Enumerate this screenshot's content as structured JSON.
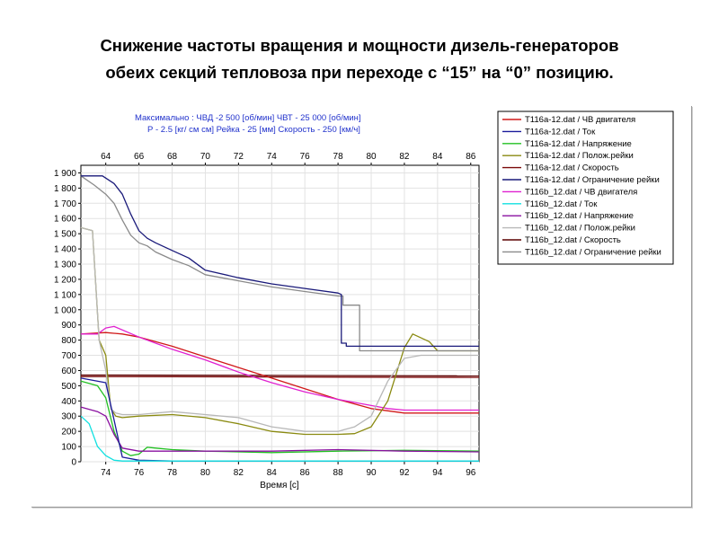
{
  "title": {
    "line1": "Снижение частоты вращения и мощности дизель-генераторов",
    "line2": "обеих секций тепловоза при  переходе с “15” на “0” позицию."
  },
  "chart_header": {
    "line1": "Максимально :   ЧВД -2 500  [об/мин]    ЧВТ - 25 000 [об/мин]",
    "line2": "Р - 2.5 [кг/ см см]   Рейка - 25 [мм]  Скорость - 250 [км/ч]"
  },
  "chart_data": {
    "type": "line",
    "xlabel": "Время [с]",
    "ylabel": "",
    "xlim": [
      72.5,
      96.5
    ],
    "ylim": [
      0,
      1950
    ],
    "grid": true,
    "legend_position": "right",
    "x_ticks_bottom": [
      "74",
      "76",
      "78",
      "80",
      "82",
      "84",
      "86",
      "88",
      "90",
      "92",
      "94",
      "96"
    ],
    "x_ticks_top": [
      "64",
      "66",
      "68",
      "70",
      "72",
      "74",
      "76",
      "78",
      "80",
      "82",
      "84",
      "86"
    ],
    "y_ticks": [
      "0",
      "100",
      "200",
      "300",
      "400",
      "500",
      "600",
      "700",
      "800",
      "900",
      "1 000",
      "1 100",
      "1 200",
      "1 300",
      "1 400",
      "1 500",
      "1 600",
      "1 700",
      "1 800",
      "1 900"
    ],
    "series": [
      {
        "name": "T116a-12.dat / ЧВ двигателя",
        "color": "#d01818",
        "x": [
          72.5,
          74,
          75,
          76,
          78,
          80,
          82,
          84,
          86,
          88,
          90,
          92,
          94,
          96.5
        ],
        "y": [
          840,
          850,
          840,
          820,
          760,
          690,
          620,
          550,
          480,
          410,
          350,
          320,
          320,
          320
        ]
      },
      {
        "name": "T116a-12.dat / Ток",
        "color": "#1a1a9a",
        "x": [
          72.5,
          74,
          75,
          76,
          78,
          80,
          82,
          84,
          86,
          88,
          89,
          90,
          92,
          94,
          96.5
        ],
        "y": [
          550,
          520,
          30,
          10,
          5,
          5,
          5,
          5,
          5,
          5,
          5,
          5,
          5,
          5,
          5
        ]
      },
      {
        "name": "T116a-12.dat / Напряжение",
        "color": "#22c022",
        "x": [
          72.5,
          73.5,
          74,
          74.5,
          75,
          75.5,
          76,
          76.5,
          77,
          78,
          80,
          84,
          88,
          92,
          96.5
        ],
        "y": [
          530,
          500,
          420,
          200,
          70,
          40,
          50,
          95,
          90,
          80,
          70,
          60,
          70,
          75,
          70
        ]
      },
      {
        "name": "T116a-12.dat / Полож.рейки",
        "color": "#8a8a10",
        "x": [
          72.5,
          73.2,
          73.6,
          74,
          74.3,
          74.6,
          75,
          76,
          78,
          80,
          82,
          84,
          86,
          88,
          89,
          90,
          91,
          92,
          92.5,
          93.5,
          94,
          96.5
        ],
        "y": [
          1540,
          1520,
          800,
          700,
          350,
          300,
          290,
          300,
          310,
          290,
          250,
          200,
          180,
          180,
          185,
          230,
          400,
          750,
          840,
          790,
          730,
          730
        ]
      },
      {
        "name": "T116a-12.dat / Скорость",
        "color": "#7a0a0a",
        "x": [
          72.5,
          96.5
        ],
        "y": [
          560,
          555
        ]
      },
      {
        "name": "T116a-12.dat / Ограничение рейки",
        "color": "#1a1a7a",
        "x": [
          72.5,
          73.8,
          74.5,
          75,
          75.5,
          76,
          76.5,
          77,
          78,
          79,
          80,
          82,
          84,
          86,
          88,
          88.2,
          88.2,
          88.5,
          88.5,
          96.5
        ],
        "y": [
          1880,
          1880,
          1830,
          1760,
          1630,
          1520,
          1470,
          1440,
          1390,
          1340,
          1260,
          1210,
          1170,
          1140,
          1110,
          1100,
          780,
          780,
          760,
          760
        ]
      },
      {
        "name": "T116b_12.dat / ЧВ двигателя",
        "color": "#e020d0",
        "x": [
          72.5,
          73.5,
          74,
          74.5,
          76,
          78,
          80,
          82,
          84,
          86,
          88,
          90,
          91,
          92,
          94,
          96.5
        ],
        "y": [
          840,
          840,
          880,
          890,
          820,
          740,
          670,
          590,
          520,
          460,
          410,
          370,
          350,
          340,
          340,
          340
        ]
      },
      {
        "name": "T116b_12.dat / Ток",
        "color": "#10e0e0",
        "x": [
          72.5,
          73,
          73.5,
          74,
          74.5,
          75,
          96.5
        ],
        "y": [
          300,
          250,
          100,
          40,
          10,
          5,
          5
        ]
      },
      {
        "name": "T116b_12.dat / Напряжение",
        "color": "#8a10a0",
        "x": [
          72.5,
          73.5,
          74,
          74.5,
          75,
          76,
          78,
          80,
          84,
          88,
          92,
          96.5
        ],
        "y": [
          360,
          330,
          300,
          180,
          90,
          70,
          70,
          70,
          70,
          80,
          70,
          65
        ]
      },
      {
        "name": "T116b_12.dat / Полож.рейки",
        "color": "#b8b8b8",
        "x": [
          72.5,
          73.2,
          73.6,
          74,
          74.3,
          74.6,
          75,
          76,
          78,
          80,
          82,
          84,
          86,
          88,
          89,
          90,
          91,
          92,
          93,
          94,
          96.5
        ],
        "y": [
          1540,
          1520,
          800,
          600,
          350,
          320,
          310,
          310,
          330,
          310,
          290,
          230,
          200,
          200,
          230,
          300,
          530,
          680,
          700,
          700,
          700
        ]
      },
      {
        "name": "T116b_12.dat / Скорость",
        "color": "#5a0000",
        "x": [
          72.5,
          96.5
        ],
        "y": [
          570,
          565
        ]
      },
      {
        "name": "T116b_12.dat / Ограничение рейки",
        "color": "#8a8a8a",
        "x": [
          72.5,
          73.3,
          74,
          74.5,
          75,
          75.5,
          76,
          76.5,
          77,
          78,
          79,
          80,
          82,
          84,
          86,
          88,
          88.3,
          88.3,
          88.7,
          89.3,
          89.3,
          90,
          96.5
        ],
        "y": [
          1880,
          1820,
          1760,
          1700,
          1590,
          1490,
          1440,
          1420,
          1380,
          1330,
          1290,
          1230,
          1190,
          1150,
          1120,
          1090,
          1090,
          1030,
          1030,
          1030,
          730,
          730,
          730
        ]
      }
    ]
  }
}
